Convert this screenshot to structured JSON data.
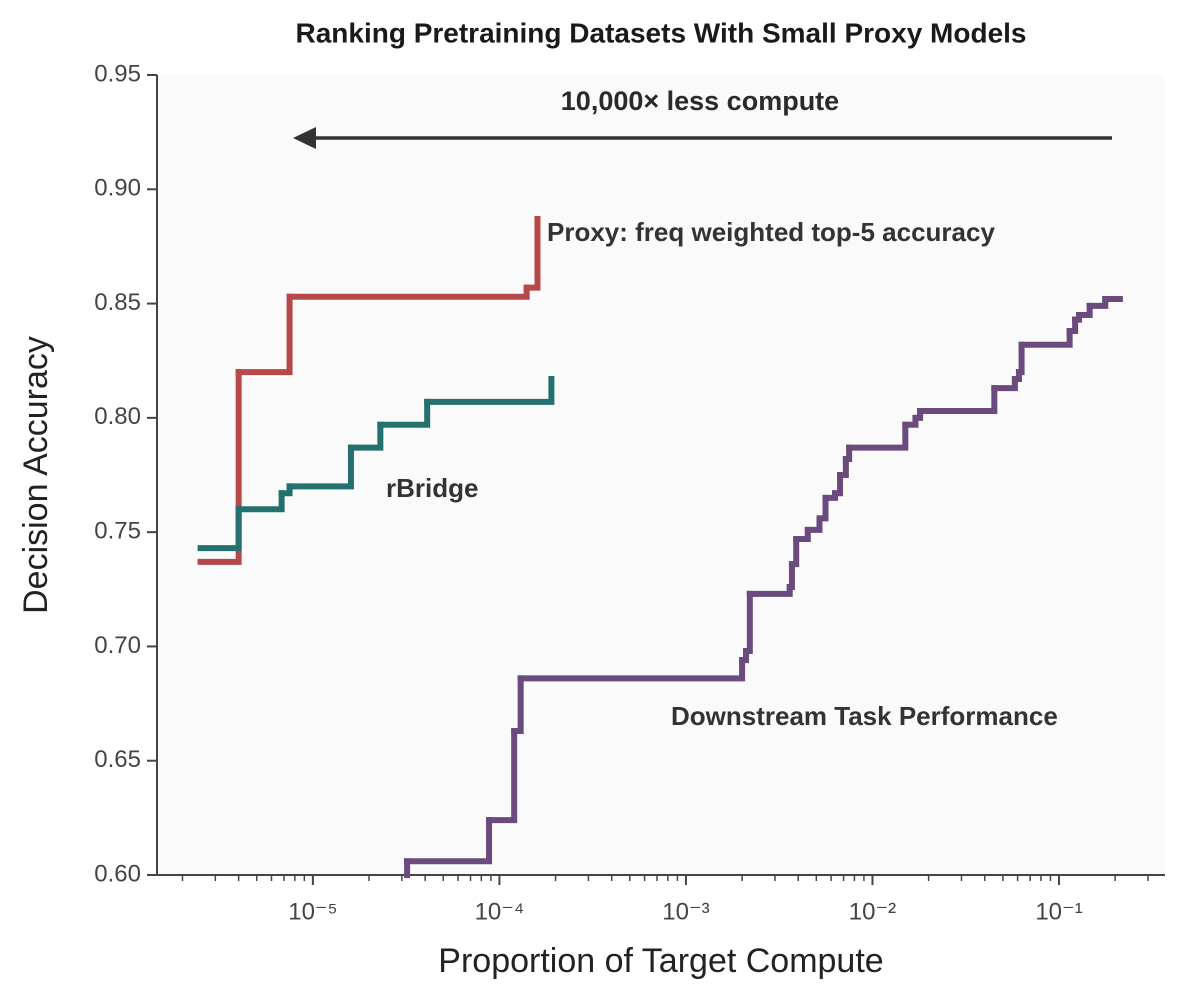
{
  "chart_data": {
    "type": "line",
    "step": "post",
    "title": "Ranking Pretraining Datasets With Small Proxy Models",
    "xlabel": "Proportion of Target Compute",
    "ylabel": "Decision Accuracy",
    "xscale": "log",
    "xlim": [
      1.46e-06,
      0.37
    ],
    "ylim": [
      0.6,
      0.95
    ],
    "xticks": [
      {
        "value": 1e-05,
        "label": "10⁻⁵"
      },
      {
        "value": 0.0001,
        "label": "10⁻⁴"
      },
      {
        "value": 0.001,
        "label": "10⁻³"
      },
      {
        "value": 0.01,
        "label": "10⁻²"
      },
      {
        "value": 0.1,
        "label": "10⁻¹"
      }
    ],
    "yticks": [
      {
        "value": 0.6,
        "label": "0.60"
      },
      0.65,
      {
        "value": 0.7,
        "label": "0.70"
      },
      0.75,
      {
        "value": 0.8,
        "label": "0.80"
      },
      0.85,
      {
        "value": 0.9,
        "label": "0.90"
      },
      0.95
    ],
    "annotations": [
      {
        "text": "10,000× less compute"
      }
    ],
    "series": [
      {
        "name": "Proxy: freq weighted top-5 accuracy",
        "color": "#b5494a",
        "x": [
          2.5e-06,
          4e-06,
          7.5e-06,
          0.00014,
          0.00016
        ],
        "values": [
          0.737,
          0.82,
          0.853,
          0.857,
          0.887
        ]
      },
      {
        "name": "rBridge",
        "color": "#23706e",
        "x": [
          2.5e-06,
          4e-06,
          6.8e-06,
          7.5e-06,
          1.6e-05,
          2.3e-05,
          4.1e-05,
          0.00019
        ],
        "values": [
          0.743,
          0.76,
          0.767,
          0.77,
          0.787,
          0.797,
          0.807,
          0.817
        ]
      },
      {
        "name": "Downstream Task Performance",
        "color": "#6b4a7e",
        "x": [
          3.2e-05,
          3.2e-05,
          8.8e-05,
          0.00012,
          0.00013,
          0.002,
          0.0021,
          0.0022,
          0.0036,
          0.0037,
          0.0039,
          0.0045,
          0.0052,
          0.0056,
          0.0063,
          0.0067,
          0.0072,
          0.0075,
          0.015,
          0.017,
          0.018,
          0.045,
          0.058,
          0.061,
          0.063,
          0.114,
          0.122,
          0.128,
          0.146,
          0.177,
          0.212
        ],
        "values": [
          0.6,
          0.606,
          0.624,
          0.663,
          0.686,
          0.694,
          0.698,
          0.723,
          0.726,
          0.736,
          0.747,
          0.751,
          0.756,
          0.765,
          0.767,
          0.775,
          0.782,
          0.787,
          0.797,
          0.8,
          0.803,
          0.813,
          0.817,
          0.82,
          0.832,
          0.838,
          0.843,
          0.845,
          0.849,
          0.852,
          0.852
        ]
      }
    ]
  }
}
